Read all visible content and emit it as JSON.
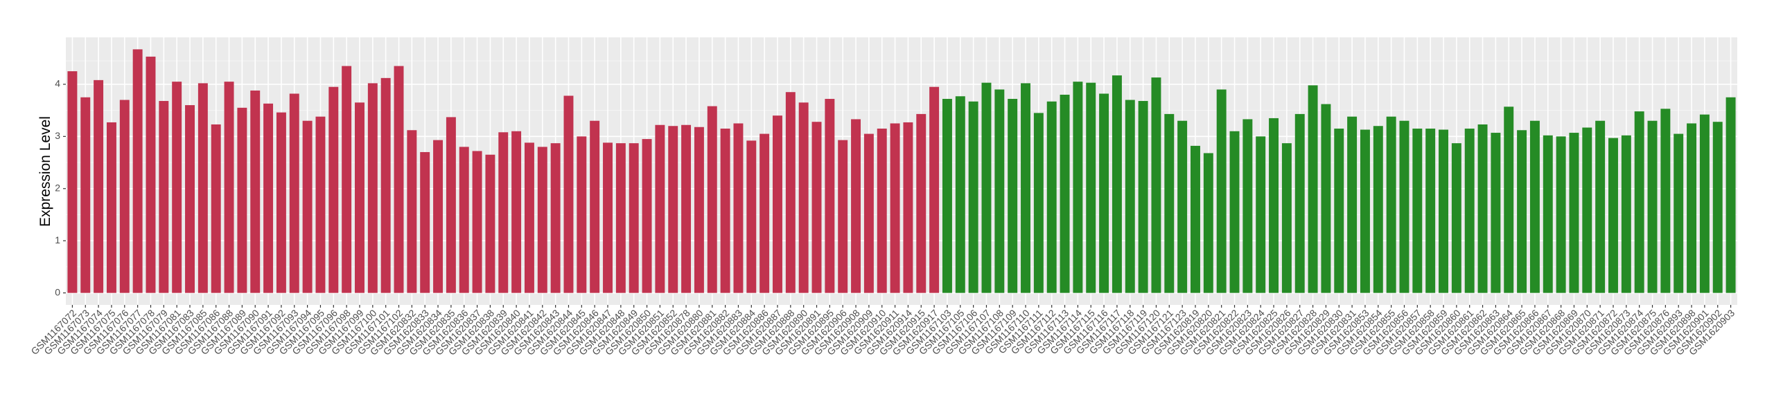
{
  "chart_data": {
    "type": "bar",
    "y_label": "Expression Level",
    "categories": [
      "GSM1167072",
      "GSM1167073",
      "GSM1167074",
      "GSM1167075",
      "GSM1167076",
      "GSM1167077",
      "GSM1167078",
      "GSM1167079",
      "GSM1167081",
      "GSM1167083",
      "GSM1167085",
      "GSM1167086",
      "GSM1167088",
      "GSM1167089",
      "GSM1167090",
      "GSM1167091",
      "GSM1167092",
      "GSM1167093",
      "GSM1167094",
      "GSM1167095",
      "GSM1167096",
      "GSM1167098",
      "GSM1167099",
      "GSM1167100",
      "GSM1167101",
      "GSM1167102",
      "GSM1620832",
      "GSM1620833",
      "GSM1620834",
      "GSM1620835",
      "GSM1620836",
      "GSM1620837",
      "GSM1620838",
      "GSM1620839",
      "GSM1620840",
      "GSM1620841",
      "GSM1620842",
      "GSM1620843",
      "GSM1620844",
      "GSM1620845",
      "GSM1620846",
      "GSM1620847",
      "GSM1620848",
      "GSM1620849",
      "GSM1620850",
      "GSM1620851",
      "GSM1620852",
      "GSM1620878",
      "GSM1620880",
      "GSM1620881",
      "GSM1620882",
      "GSM1620883",
      "GSM1620884",
      "GSM1620886",
      "GSM1620887",
      "GSM1620888",
      "GSM1620890",
      "GSM1620891",
      "GSM1620895",
      "GSM1620906",
      "GSM1620908",
      "GSM1620909",
      "GSM1620910",
      "GSM1620911",
      "GSM1620914",
      "GSM1620915",
      "GSM1620917",
      "GSM1167103",
      "GSM1167105",
      "GSM1167106",
      "GSM1167107",
      "GSM1167108",
      "GSM1167109",
      "GSM1167110",
      "GSM1167111",
      "GSM1167112",
      "GSM1167113",
      "GSM1167114",
      "GSM1167115",
      "GSM1167116",
      "GSM1167117",
      "GSM1167118",
      "GSM1167119",
      "GSM1167120",
      "GSM1167121",
      "GSM1167123",
      "GSM1620819",
      "GSM1620820",
      "GSM1620821",
      "GSM1620822",
      "GSM1620823",
      "GSM1620824",
      "GSM1620825",
      "GSM1620826",
      "GSM1620827",
      "GSM1620828",
      "GSM1620829",
      "GSM1620830",
      "GSM1620831",
      "GSM1620853",
      "GSM1620854",
      "GSM1620855",
      "GSM1620856",
      "GSM1620857",
      "GSM1620858",
      "GSM1620859",
      "GSM1620860",
      "GSM1620861",
      "GSM1620862",
      "GSM1620863",
      "GSM1620864",
      "GSM1620865",
      "GSM1620866",
      "GSM1620867",
      "GSM1620868",
      "GSM1620869",
      "GSM1620870",
      "GSM1620871",
      "GSM1620872",
      "GSM1620873",
      "GSM1620874",
      "GSM1620875",
      "GSM1620876",
      "GSM1620893",
      "GSM1620898",
      "GSM1620901",
      "GSM1620902",
      "GSM1620903"
    ],
    "values": [
      4.25,
      3.75,
      4.08,
      3.27,
      3.7,
      4.67,
      4.53,
      3.68,
      4.05,
      3.6,
      4.02,
      3.23,
      4.05,
      3.55,
      3.88,
      3.63,
      3.46,
      3.82,
      3.3,
      3.38,
      3.95,
      4.35,
      3.65,
      4.02,
      4.12,
      4.35,
      3.12,
      2.7,
      2.93,
      3.37,
      2.8,
      2.72,
      2.65,
      3.08,
      3.1,
      2.88,
      2.8,
      2.87,
      3.78,
      3.0,
      3.3,
      2.88,
      2.87,
      2.87,
      2.95,
      3.22,
      3.2,
      3.22,
      3.18,
      3.58,
      3.15,
      3.25,
      2.92,
      3.05,
      3.4,
      3.85,
      3.65,
      3.28,
      3.72,
      2.93,
      3.33,
      3.05,
      3.15,
      3.25,
      3.27,
      3.43,
      3.95,
      3.72,
      3.77,
      3.67,
      4.03,
      3.9,
      3.72,
      4.02,
      3.45,
      3.67,
      3.8,
      4.05,
      4.03,
      3.82,
      4.17,
      3.7,
      3.68,
      4.13,
      3.43,
      3.3,
      2.82,
      2.68,
      3.9,
      3.1,
      3.33,
      3.0,
      3.35,
      2.87,
      3.43,
      3.98,
      3.62,
      3.15,
      3.38,
      3.13,
      3.2,
      3.38,
      3.3,
      3.15,
      3.15,
      3.13,
      2.87,
      3.15,
      3.23,
      3.07,
      3.57,
      3.12,
      3.3,
      3.02,
      3.0,
      3.07,
      3.17,
      3.3,
      2.97,
      3.02,
      3.48,
      3.3,
      3.53,
      3.05,
      3.25,
      3.42,
      3.28,
      3.75
    ],
    "colors": [
      "#c1334f",
      "#c1334f",
      "#c1334f",
      "#c1334f",
      "#c1334f",
      "#c1334f",
      "#c1334f",
      "#c1334f",
      "#c1334f",
      "#c1334f",
      "#c1334f",
      "#c1334f",
      "#c1334f",
      "#c1334f",
      "#c1334f",
      "#c1334f",
      "#c1334f",
      "#c1334f",
      "#c1334f",
      "#c1334f",
      "#c1334f",
      "#c1334f",
      "#c1334f",
      "#c1334f",
      "#c1334f",
      "#c1334f",
      "#c1334f",
      "#c1334f",
      "#c1334f",
      "#c1334f",
      "#c1334f",
      "#c1334f",
      "#c1334f",
      "#c1334f",
      "#c1334f",
      "#c1334f",
      "#c1334f",
      "#c1334f",
      "#c1334f",
      "#c1334f",
      "#c1334f",
      "#c1334f",
      "#c1334f",
      "#c1334f",
      "#c1334f",
      "#c1334f",
      "#c1334f",
      "#c1334f",
      "#c1334f",
      "#c1334f",
      "#c1334f",
      "#c1334f",
      "#c1334f",
      "#c1334f",
      "#c1334f",
      "#c1334f",
      "#c1334f",
      "#c1334f",
      "#c1334f",
      "#c1334f",
      "#c1334f",
      "#c1334f",
      "#c1334f",
      "#c1334f",
      "#c1334f",
      "#c1334f",
      "#c1334f",
      "#258b25",
      "#258b25",
      "#258b25",
      "#258b25",
      "#258b25",
      "#258b25",
      "#258b25",
      "#258b25",
      "#258b25",
      "#258b25",
      "#258b25",
      "#258b25",
      "#258b25",
      "#258b25",
      "#258b25",
      "#258b25",
      "#258b25",
      "#258b25",
      "#258b25",
      "#258b25",
      "#258b25",
      "#258b25",
      "#258b25",
      "#258b25",
      "#258b25",
      "#258b25",
      "#258b25",
      "#258b25",
      "#258b25",
      "#258b25",
      "#258b25",
      "#258b25",
      "#258b25",
      "#258b25",
      "#258b25",
      "#258b25",
      "#258b25",
      "#258b25",
      "#258b25",
      "#258b25",
      "#258b25",
      "#258b25",
      "#258b25",
      "#258b25",
      "#258b25",
      "#258b25",
      "#258b25",
      "#258b25",
      "#258b25",
      "#258b25",
      "#258b25",
      "#258b25",
      "#258b25",
      "#258b25",
      "#258b25",
      "#258b25",
      "#258b25",
      "#258b25",
      "#258b25",
      "#258b25",
      "#258b25"
    ],
    "ylim": [
      -0.23,
      4.9
    ],
    "yticks": [
      0,
      1,
      2,
      3,
      4
    ],
    "grid": true
  }
}
